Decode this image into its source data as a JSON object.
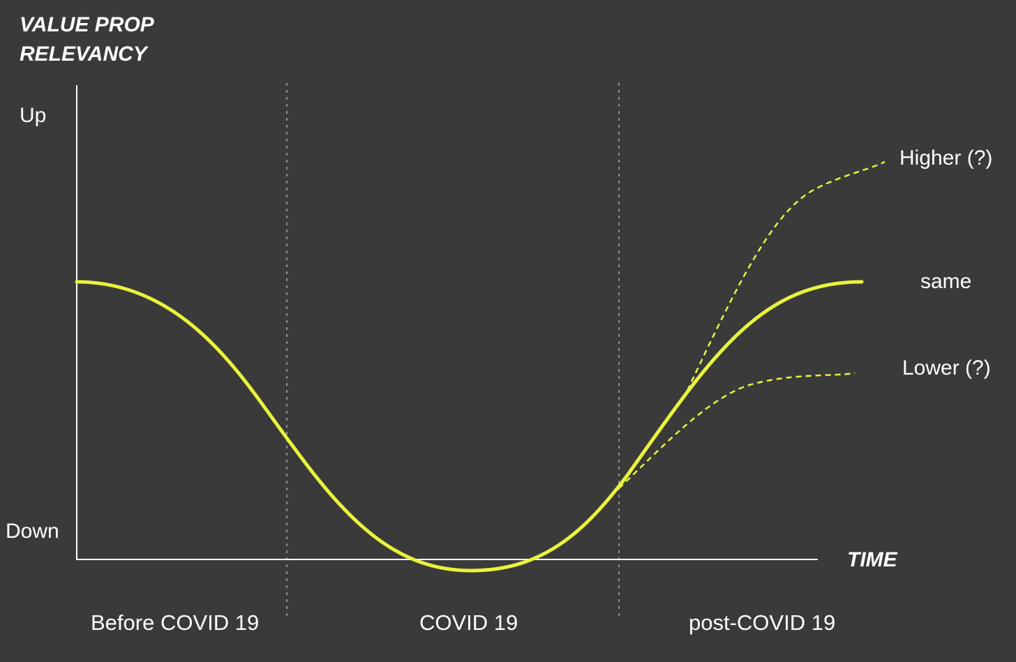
{
  "title": {
    "line1": "VALUE PROP",
    "line2": "RELEVANCY"
  },
  "y_axis": {
    "top_label": "Up",
    "bottom_label": "Down"
  },
  "x_axis": {
    "label": "TIME"
  },
  "phases": [
    {
      "label": "Before COVID 19"
    },
    {
      "label": "COVID 19"
    },
    {
      "label": "post-COVID 19"
    }
  ],
  "outcomes": {
    "higher": "Higher (?)",
    "same": "same",
    "lower": "Lower (?)"
  },
  "colors": {
    "background": "#3a3a3a",
    "text": "#ffffff",
    "axis": "#ffffff",
    "curve": "#e8f53c",
    "divider": "#9a9a9a"
  }
}
